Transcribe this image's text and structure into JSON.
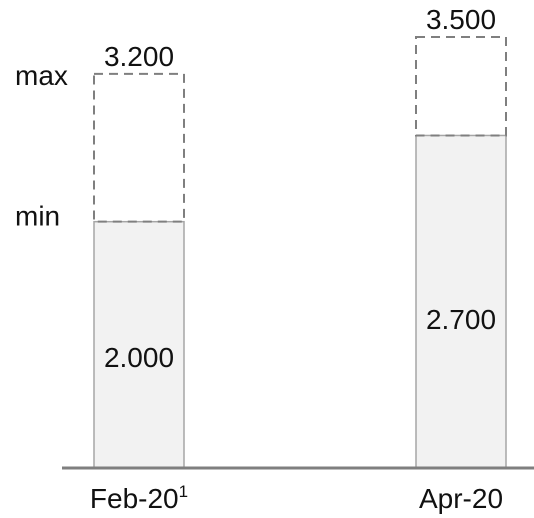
{
  "chart_data": {
    "type": "bar",
    "categories": [
      "Feb-20",
      "Apr-20"
    ],
    "category_footnotes": [
      "1",
      ""
    ],
    "series": [
      {
        "values": [
          2000,
          2700
        ],
        "value_labels": [
          "2.000",
          "2.700"
        ]
      },
      {
        "values": [
          3200,
          3500
        ],
        "value_labels": [
          "3.200",
          "3.500"
        ]
      }
    ],
    "range_labels": {
      "min": "min",
      "max": "max"
    },
    "title": "",
    "xlabel": "",
    "ylabel": "",
    "ylim": [
      0,
      3800
    ],
    "grid": false,
    "legend": "none",
    "colors": {
      "bar_fill": "#f2f2f2",
      "bar_stroke": "#a6a6a6",
      "dashed_stroke": "#7f7f7f",
      "axis": "#7f7f7f",
      "text": "#111111"
    }
  }
}
